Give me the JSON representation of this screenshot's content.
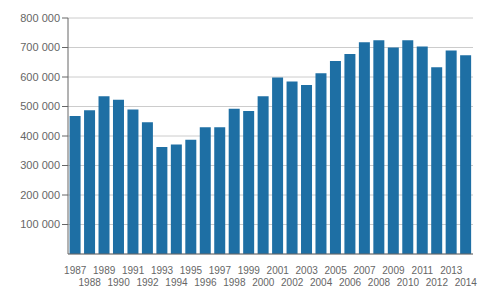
{
  "chart_data": {
    "type": "bar",
    "categories": [
      "1987",
      "1988",
      "1989",
      "1990",
      "1991",
      "1992",
      "1993",
      "1994",
      "1995",
      "1996",
      "1997",
      "1998",
      "1999",
      "2000",
      "2001",
      "2002",
      "2003",
      "2004",
      "2005",
      "2006",
      "2007",
      "2008",
      "2009",
      "2010",
      "2011",
      "2012",
      "2013",
      "2014"
    ],
    "values": [
      468000,
      487000,
      535000,
      523000,
      490000,
      447000,
      363000,
      371000,
      387000,
      430000,
      430000,
      492000,
      485000,
      535000,
      598000,
      585000,
      573000,
      613000,
      654000,
      678000,
      718000,
      725000,
      700000,
      725000,
      703000,
      633000,
      690000,
      674000
    ],
    "color": "#1e6fa4",
    "ylim": [
      0,
      800000
    ],
    "yticks": [
      {
        "value": 100000,
        "label": "100 000"
      },
      {
        "value": 200000,
        "label": "200 000"
      },
      {
        "value": 300000,
        "label": "300 000"
      },
      {
        "value": 400000,
        "label": "400 000"
      },
      {
        "value": 500000,
        "label": "500 000"
      },
      {
        "value": 600000,
        "label": "600 000"
      },
      {
        "value": 700000,
        "label": "700 000"
      },
      {
        "value": 800000,
        "label": "800 000"
      }
    ],
    "grid": true
  }
}
